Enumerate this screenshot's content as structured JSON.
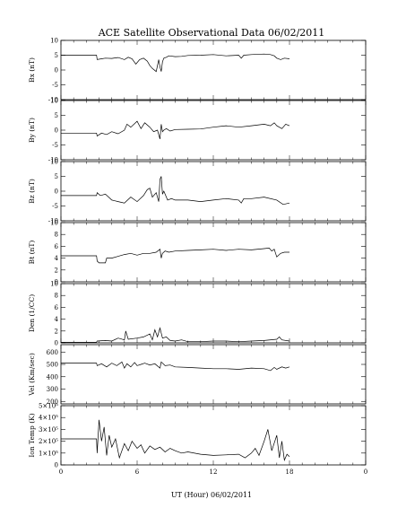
{
  "figure": {
    "title": "ACE Satellite Observational Data   06/02/2011",
    "xlabel": "UT (Hour)  06/02/2011"
  },
  "chart_data": [
    {
      "type": "line",
      "ylabel": "Bx (nT)",
      "xlim": [
        0,
        24
      ],
      "ylim": [
        -10,
        10
      ],
      "yticks": [
        "10",
        "5",
        "0",
        "-5",
        "-10"
      ],
      "yticks_num": [
        10,
        5,
        0,
        -5,
        -10
      ],
      "series": [
        {
          "x": [
            0,
            2.8,
            2.85,
            3.2,
            3.5,
            4.0,
            4.5,
            5.0,
            5.3,
            5.6,
            5.9,
            6.2,
            6.5,
            6.8,
            7.0,
            7.2,
            7.5,
            7.7,
            7.8,
            7.9,
            8.0,
            8.1,
            8.3,
            8.5,
            9.0,
            9.5,
            10.0,
            11.0,
            12.0,
            13.0,
            14.0,
            14.2,
            14.4,
            15.0,
            16.0,
            16.5,
            16.8,
            17.0,
            17.3,
            17.6,
            18.0
          ],
          "y": [
            5,
            5,
            3.5,
            3.8,
            4.0,
            3.9,
            4.2,
            3.5,
            4.3,
            3.8,
            2.0,
            3.5,
            4.0,
            3.0,
            1.5,
            0.5,
            -0.5,
            3.5,
            1.0,
            -0.5,
            2.8,
            4.0,
            4.3,
            4.8,
            4.5,
            4.6,
            4.9,
            5.0,
            5.2,
            4.8,
            5.0,
            4.0,
            5.0,
            5.2,
            5.4,
            5.2,
            4.8,
            4.0,
            3.5,
            4.0,
            3.8
          ]
        }
      ]
    },
    {
      "type": "line",
      "ylabel": "By (nT)",
      "xlim": [
        0,
        24
      ],
      "ylim": [
        -10,
        10
      ],
      "yticks": [
        "10",
        "5",
        "0",
        "-5",
        "-10"
      ],
      "yticks_num": [
        10,
        5,
        0,
        -5,
        -10
      ],
      "series": [
        {
          "x": [
            0,
            2.8,
            2.85,
            3.2,
            3.6,
            4.0,
            4.5,
            5.0,
            5.2,
            5.5,
            6.0,
            6.3,
            6.6,
            7.0,
            7.3,
            7.6,
            7.8,
            7.9,
            8.0,
            8.1,
            8.3,
            8.6,
            9.0,
            10.0,
            11.0,
            12.0,
            13.0,
            14.0,
            15.0,
            16.0,
            16.5,
            16.8,
            17.0,
            17.4,
            17.7,
            18.0
          ],
          "y": [
            -1,
            -1,
            -2.0,
            -1.0,
            -1.5,
            -0.5,
            -1.2,
            0.0,
            2.0,
            1.0,
            3.0,
            0.5,
            2.5,
            1.0,
            -0.5,
            0.0,
            -3.0,
            2.0,
            -0.5,
            0.0,
            0.5,
            -0.3,
            0.2,
            0.3,
            0.4,
            1.0,
            1.5,
            1.0,
            1.5,
            2.0,
            1.5,
            2.5,
            1.5,
            0.5,
            2.0,
            1.5
          ]
        }
      ]
    },
    {
      "type": "line",
      "ylabel": "Bz (nT)",
      "xlim": [
        0,
        24
      ],
      "ylim": [
        -10,
        10
      ],
      "yticks": [
        "10",
        "5",
        "0",
        "-5",
        "-10"
      ],
      "yticks_num": [
        10,
        5,
        0,
        -5,
        -10
      ],
      "series": [
        {
          "x": [
            0,
            2.8,
            2.85,
            3.1,
            3.5,
            4.0,
            4.5,
            5.0,
            5.5,
            6.0,
            6.5,
            6.8,
            7.0,
            7.2,
            7.5,
            7.7,
            7.8,
            7.9,
            8.0,
            8.1,
            8.2,
            8.4,
            8.7,
            9.0,
            10.0,
            11.0,
            12.0,
            13.0,
            14.0,
            14.2,
            14.4,
            15.0,
            16.0,
            17.0,
            17.5,
            18.0
          ],
          "y": [
            -1.5,
            -1.5,
            -0.5,
            -1.5,
            -1.0,
            -3.0,
            -3.5,
            -4.0,
            -2.0,
            -3.5,
            -1.5,
            0.5,
            1.0,
            -2.0,
            -0.5,
            -3.5,
            4.0,
            5.0,
            -1.0,
            0.0,
            -1.0,
            -3.0,
            -2.5,
            -3.0,
            -3.0,
            -3.5,
            -3.0,
            -2.5,
            -3.0,
            -4.0,
            -2.5,
            -2.5,
            -2.0,
            -3.0,
            -4.5,
            -4.0
          ]
        }
      ]
    },
    {
      "type": "line",
      "ylabel": "Bt (nT)",
      "xlim": [
        0,
        24
      ],
      "ylim": [
        0,
        10
      ],
      "yticks": [
        "10",
        "8",
        "6",
        "4",
        "2",
        "0"
      ],
      "yticks_num": [
        10,
        8,
        6,
        4,
        2,
        0
      ],
      "series": [
        {
          "x": [
            0,
            2.8,
            2.85,
            3.0,
            3.5,
            3.6,
            4.0,
            4.5,
            5.0,
            5.5,
            6.0,
            6.5,
            7.0,
            7.5,
            7.8,
            7.9,
            8.0,
            8.2,
            8.5,
            9.0,
            10.0,
            11.0,
            12.0,
            13.0,
            14.0,
            15.0,
            16.0,
            16.4,
            16.6,
            16.8,
            17.0,
            17.3,
            17.6,
            18.0
          ],
          "y": [
            4.4,
            4.4,
            3.5,
            3.2,
            3.2,
            4.0,
            4.0,
            4.3,
            4.6,
            4.8,
            4.5,
            4.8,
            4.8,
            5.0,
            5.5,
            4.0,
            4.8,
            5.2,
            5.0,
            5.2,
            5.3,
            5.4,
            5.5,
            5.3,
            5.5,
            5.4,
            5.6,
            5.7,
            5.2,
            5.5,
            4.2,
            4.8,
            5.0,
            5.0
          ]
        }
      ]
    },
    {
      "type": "line",
      "ylabel": "Den (1/CC)",
      "xlim": [
        0,
        24
      ],
      "ylim": [
        0,
        10
      ],
      "yticks": [
        "10",
        "8",
        "6",
        "4",
        "2",
        "0"
      ],
      "yticks_num": [
        10,
        8,
        6,
        4,
        2,
        0
      ],
      "series": [
        {
          "x": [
            0,
            2.8,
            2.85,
            3.5,
            4.0,
            4.5,
            5.0,
            5.1,
            5.3,
            6.0,
            6.5,
            7.0,
            7.2,
            7.4,
            7.6,
            7.8,
            8.0,
            8.3,
            8.6,
            9.0,
            9.5,
            10.0,
            11.0,
            12.0,
            13.0,
            14.0,
            15.0,
            16.0,
            17.0,
            17.2,
            17.4,
            18.0
          ],
          "y": [
            0.1,
            0.1,
            0.3,
            0.4,
            0.3,
            0.8,
            0.5,
            2.0,
            0.6,
            0.8,
            1.0,
            1.5,
            0.5,
            2.2,
            1.0,
            2.5,
            0.8,
            1.0,
            0.4,
            0.3,
            0.5,
            0.2,
            0.2,
            0.3,
            0.3,
            0.2,
            0.3,
            0.4,
            0.6,
            1.0,
            0.5,
            0.3
          ]
        }
      ]
    },
    {
      "type": "line",
      "ylabel": "Vel (Km/sec)",
      "xlim": [
        0,
        24
      ],
      "ylim": [
        180,
        660
      ],
      "yticks": [
        "600",
        "500",
        "400",
        "300",
        "200"
      ],
      "yticks_num": [
        600,
        500,
        400,
        300,
        200
      ],
      "series": [
        {
          "x": [
            0,
            2.8,
            2.85,
            3.2,
            3.6,
            4.0,
            4.4,
            4.8,
            5.0,
            5.2,
            5.5,
            5.8,
            6.0,
            6.3,
            6.6,
            7.0,
            7.4,
            7.8,
            7.9,
            8.2,
            8.6,
            9.0,
            10.0,
            11.0,
            12.0,
            13.0,
            14.0,
            15.0,
            16.0,
            16.5,
            16.8,
            17.0,
            17.4,
            17.7,
            18.0
          ],
          "y": [
            510,
            510,
            490,
            505,
            480,
            510,
            490,
            520,
            470,
            505,
            480,
            515,
            490,
            500,
            510,
            495,
            505,
            470,
            520,
            490,
            495,
            480,
            475,
            470,
            465,
            465,
            460,
            470,
            465,
            450,
            475,
            460,
            480,
            470,
            480
          ]
        }
      ]
    },
    {
      "type": "line",
      "ylabel": "Ion Temp (K)",
      "xlim": [
        0,
        24
      ],
      "ylim": [
        0,
        500000
      ],
      "yticks": [
        "5×10⁵",
        "4×10⁵",
        "3×10⁵",
        "2×10⁵",
        "1×10⁵",
        "0"
      ],
      "yticks_num": [
        500000,
        400000,
        300000,
        200000,
        100000,
        0
      ],
      "series": [
        {
          "x": [
            0,
            2.8,
            2.85,
            3.0,
            3.2,
            3.4,
            3.6,
            3.8,
            4.0,
            4.3,
            4.6,
            5.0,
            5.3,
            5.6,
            6.0,
            6.3,
            6.6,
            7.0,
            7.4,
            7.8,
            8.2,
            8.6,
            9.0,
            9.5,
            10.0,
            11.0,
            12.0,
            13.0,
            14.0,
            14.5,
            15.0,
            15.3,
            15.6,
            16.0,
            16.3,
            16.6,
            17.0,
            17.2,
            17.4,
            17.6,
            17.8,
            18.0
          ],
          "y": [
            220000,
            220000,
            100000,
            380000,
            200000,
            320000,
            80000,
            250000,
            150000,
            220000,
            60000,
            180000,
            120000,
            200000,
            140000,
            170000,
            100000,
            160000,
            130000,
            150000,
            110000,
            140000,
            120000,
            100000,
            110000,
            90000,
            80000,
            85000,
            90000,
            60000,
            100000,
            140000,
            80000,
            200000,
            300000,
            120000,
            250000,
            60000,
            200000,
            40000,
            90000,
            70000
          ]
        }
      ]
    }
  ],
  "xaxis": {
    "xlim": [
      0,
      24
    ],
    "xticks": [
      "0",
      "6",
      "12",
      "18",
      "0"
    ],
    "xticks_num": [
      0,
      6,
      12,
      18,
      24
    ]
  }
}
